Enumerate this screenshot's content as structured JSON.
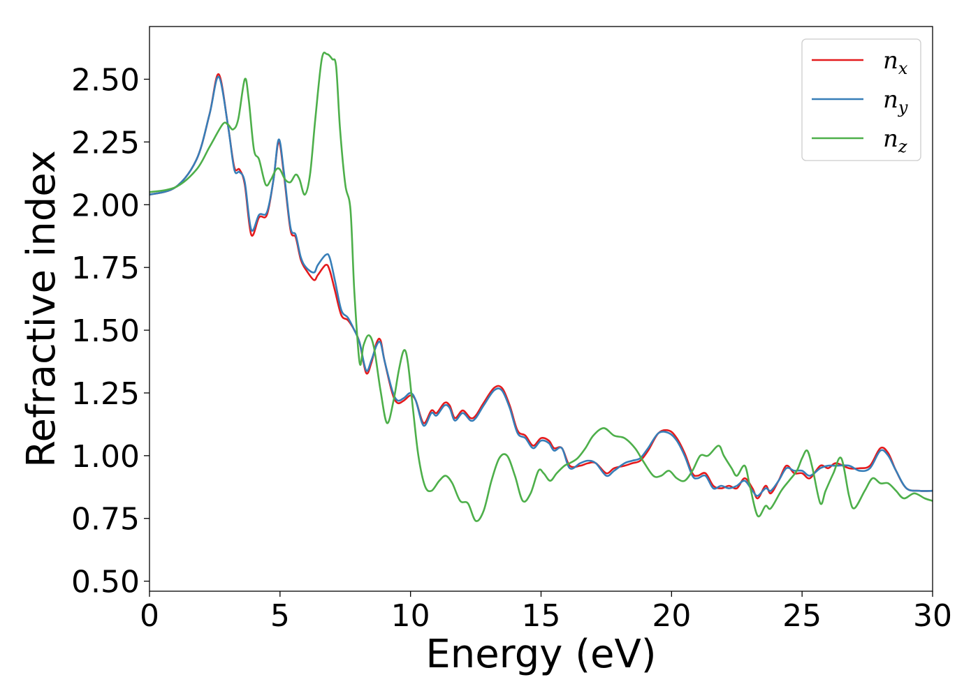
{
  "chart_data": {
    "type": "line",
    "title": "",
    "xlabel": "Energy (eV)",
    "ylabel": "Refractive index",
    "xlim": [
      0,
      30
    ],
    "ylim": [
      0.46,
      2.71
    ],
    "xticks": [
      0,
      5,
      10,
      15,
      20,
      25,
      30
    ],
    "xtick_labels": [
      "0",
      "5",
      "10",
      "15",
      "20",
      "25",
      "30"
    ],
    "yticks": [
      0.5,
      0.75,
      1.0,
      1.25,
      1.5,
      1.75,
      2.0,
      2.25,
      2.5
    ],
    "ytick_labels": [
      "0.50",
      "0.75",
      "1.00",
      "1.25",
      "1.50",
      "1.75",
      "2.00",
      "2.25",
      "2.50"
    ],
    "grid": false,
    "legend_position": "top-right",
    "series": [
      {
        "name": "n",
        "sub": "x",
        "color": "#e41a1c",
        "points": [
          [
            0,
            2.04
          ],
          [
            1,
            2.07
          ],
          [
            1.8,
            2.18
          ],
          [
            2.3,
            2.36
          ],
          [
            2.65,
            2.52
          ],
          [
            3.0,
            2.32
          ],
          [
            3.25,
            2.15
          ],
          [
            3.45,
            2.14
          ],
          [
            3.65,
            2.08
          ],
          [
            3.9,
            1.88
          ],
          [
            4.2,
            1.95
          ],
          [
            4.5,
            1.96
          ],
          [
            4.75,
            2.1
          ],
          [
            4.95,
            2.25
          ],
          [
            5.15,
            2.12
          ],
          [
            5.4,
            1.9
          ],
          [
            5.6,
            1.87
          ],
          [
            5.8,
            1.78
          ],
          [
            6.0,
            1.74
          ],
          [
            6.3,
            1.7
          ],
          [
            6.45,
            1.72
          ],
          [
            6.75,
            1.76
          ],
          [
            6.9,
            1.74
          ],
          [
            7.1,
            1.66
          ],
          [
            7.35,
            1.56
          ],
          [
            7.6,
            1.54
          ],
          [
            7.85,
            1.5
          ],
          [
            8.05,
            1.45
          ],
          [
            8.3,
            1.33
          ],
          [
            8.5,
            1.37
          ],
          [
            8.7,
            1.45
          ],
          [
            8.85,
            1.46
          ],
          [
            9.0,
            1.38
          ],
          [
            9.3,
            1.25
          ],
          [
            9.5,
            1.21
          ],
          [
            9.75,
            1.22
          ],
          [
            10.0,
            1.24
          ],
          [
            10.2,
            1.22
          ],
          [
            10.5,
            1.13
          ],
          [
            10.8,
            1.18
          ],
          [
            11.0,
            1.17
          ],
          [
            11.3,
            1.21
          ],
          [
            11.5,
            1.2
          ],
          [
            11.7,
            1.15
          ],
          [
            12.0,
            1.18
          ],
          [
            12.3,
            1.15
          ],
          [
            12.5,
            1.16
          ],
          [
            12.8,
            1.21
          ],
          [
            13.2,
            1.27
          ],
          [
            13.5,
            1.27
          ],
          [
            13.8,
            1.2
          ],
          [
            14.1,
            1.1
          ],
          [
            14.4,
            1.08
          ],
          [
            14.7,
            1.04
          ],
          [
            15.0,
            1.07
          ],
          [
            15.3,
            1.06
          ],
          [
            15.5,
            1.03
          ],
          [
            15.8,
            1.03
          ],
          [
            16.1,
            0.96
          ],
          [
            16.5,
            0.96
          ],
          [
            16.8,
            0.97
          ],
          [
            17.1,
            0.97
          ],
          [
            17.5,
            0.93
          ],
          [
            17.8,
            0.95
          ],
          [
            18.2,
            0.96
          ],
          [
            18.5,
            0.97
          ],
          [
            18.8,
            0.98
          ],
          [
            19.1,
            1.02
          ],
          [
            19.5,
            1.09
          ],
          [
            19.9,
            1.1
          ],
          [
            20.2,
            1.07
          ],
          [
            20.5,
            1.01
          ],
          [
            20.8,
            0.93
          ],
          [
            21.0,
            0.92
          ],
          [
            21.3,
            0.93
          ],
          [
            21.6,
            0.88
          ],
          [
            21.9,
            0.87
          ],
          [
            22.2,
            0.88
          ],
          [
            22.5,
            0.87
          ],
          [
            22.8,
            0.91
          ],
          [
            23.1,
            0.87
          ],
          [
            23.3,
            0.83
          ],
          [
            23.6,
            0.88
          ],
          [
            23.8,
            0.85
          ],
          [
            24.1,
            0.9
          ],
          [
            24.4,
            0.96
          ],
          [
            24.7,
            0.93
          ],
          [
            25.0,
            0.93
          ],
          [
            25.3,
            0.91
          ],
          [
            25.7,
            0.96
          ],
          [
            26.0,
            0.95
          ],
          [
            26.3,
            0.97
          ],
          [
            26.8,
            0.95
          ],
          [
            27.2,
            0.95
          ],
          [
            27.6,
            0.96
          ],
          [
            28.0,
            1.03
          ],
          [
            28.3,
            1.01
          ],
          [
            28.6,
            0.94
          ],
          [
            29.0,
            0.87
          ],
          [
            29.5,
            0.86
          ],
          [
            30.0,
            0.86
          ]
        ]
      },
      {
        "name": "n",
        "sub": "y",
        "color": "#377eb8",
        "points": [
          [
            0,
            2.04
          ],
          [
            1,
            2.07
          ],
          [
            1.8,
            2.18
          ],
          [
            2.3,
            2.36
          ],
          [
            2.65,
            2.51
          ],
          [
            3.0,
            2.32
          ],
          [
            3.25,
            2.14
          ],
          [
            3.45,
            2.13
          ],
          [
            3.65,
            2.09
          ],
          [
            3.9,
            1.9
          ],
          [
            4.2,
            1.96
          ],
          [
            4.5,
            1.97
          ],
          [
            4.75,
            2.1
          ],
          [
            4.95,
            2.26
          ],
          [
            5.15,
            2.13
          ],
          [
            5.4,
            1.91
          ],
          [
            5.6,
            1.88
          ],
          [
            5.8,
            1.79
          ],
          [
            6.0,
            1.75
          ],
          [
            6.3,
            1.73
          ],
          [
            6.45,
            1.76
          ],
          [
            6.75,
            1.8
          ],
          [
            6.9,
            1.79
          ],
          [
            7.1,
            1.7
          ],
          [
            7.35,
            1.58
          ],
          [
            7.6,
            1.55
          ],
          [
            7.85,
            1.5
          ],
          [
            8.05,
            1.45
          ],
          [
            8.3,
            1.34
          ],
          [
            8.5,
            1.38
          ],
          [
            8.7,
            1.44
          ],
          [
            8.85,
            1.45
          ],
          [
            9.0,
            1.38
          ],
          [
            9.3,
            1.26
          ],
          [
            9.5,
            1.22
          ],
          [
            9.75,
            1.23
          ],
          [
            10.0,
            1.25
          ],
          [
            10.2,
            1.22
          ],
          [
            10.5,
            1.12
          ],
          [
            10.8,
            1.17
          ],
          [
            11.0,
            1.16
          ],
          [
            11.3,
            1.2
          ],
          [
            11.5,
            1.19
          ],
          [
            11.7,
            1.14
          ],
          [
            12.0,
            1.17
          ],
          [
            12.3,
            1.14
          ],
          [
            12.5,
            1.15
          ],
          [
            12.8,
            1.2
          ],
          [
            13.2,
            1.26
          ],
          [
            13.5,
            1.26
          ],
          [
            13.8,
            1.19
          ],
          [
            14.1,
            1.09
          ],
          [
            14.4,
            1.07
          ],
          [
            14.7,
            1.03
          ],
          [
            15.0,
            1.06
          ],
          [
            15.3,
            1.05
          ],
          [
            15.5,
            1.02
          ],
          [
            15.8,
            1.03
          ],
          [
            16.1,
            0.95
          ],
          [
            16.5,
            0.97
          ],
          [
            16.8,
            0.98
          ],
          [
            17.1,
            0.97
          ],
          [
            17.5,
            0.92
          ],
          [
            17.8,
            0.94
          ],
          [
            18.2,
            0.97
          ],
          [
            18.5,
            0.98
          ],
          [
            18.8,
            0.99
          ],
          [
            19.1,
            1.03
          ],
          [
            19.5,
            1.09
          ],
          [
            19.9,
            1.09
          ],
          [
            20.2,
            1.06
          ],
          [
            20.5,
            1.0
          ],
          [
            20.8,
            0.92
          ],
          [
            21.0,
            0.91
          ],
          [
            21.3,
            0.92
          ],
          [
            21.6,
            0.87
          ],
          [
            21.9,
            0.88
          ],
          [
            22.2,
            0.87
          ],
          [
            22.5,
            0.88
          ],
          [
            22.8,
            0.9
          ],
          [
            23.1,
            0.86
          ],
          [
            23.3,
            0.84
          ],
          [
            23.6,
            0.87
          ],
          [
            23.8,
            0.86
          ],
          [
            24.1,
            0.9
          ],
          [
            24.4,
            0.95
          ],
          [
            24.7,
            0.94
          ],
          [
            25.0,
            0.94
          ],
          [
            25.3,
            0.92
          ],
          [
            25.7,
            0.95
          ],
          [
            26.0,
            0.96
          ],
          [
            26.3,
            0.96
          ],
          [
            26.8,
            0.96
          ],
          [
            27.2,
            0.94
          ],
          [
            27.6,
            0.95
          ],
          [
            28.0,
            1.02
          ],
          [
            28.3,
            1.0
          ],
          [
            28.6,
            0.94
          ],
          [
            29.0,
            0.87
          ],
          [
            29.5,
            0.86
          ],
          [
            30.0,
            0.86
          ]
        ]
      },
      {
        "name": "n",
        "sub": "z",
        "color": "#4daf4a",
        "points": [
          [
            0,
            2.05
          ],
          [
            1,
            2.07
          ],
          [
            1.8,
            2.14
          ],
          [
            2.3,
            2.23
          ],
          [
            2.8,
            2.32
          ],
          [
            3.0,
            2.32
          ],
          [
            3.2,
            2.3
          ],
          [
            3.4,
            2.34
          ],
          [
            3.65,
            2.5
          ],
          [
            3.8,
            2.42
          ],
          [
            4.0,
            2.22
          ],
          [
            4.2,
            2.18
          ],
          [
            4.45,
            2.08
          ],
          [
            4.65,
            2.1
          ],
          [
            4.85,
            2.14
          ],
          [
            5.0,
            2.14
          ],
          [
            5.2,
            2.1
          ],
          [
            5.4,
            2.09
          ],
          [
            5.6,
            2.12
          ],
          [
            5.75,
            2.1
          ],
          [
            5.95,
            2.04
          ],
          [
            6.15,
            2.12
          ],
          [
            6.35,
            2.34
          ],
          [
            6.6,
            2.58
          ],
          [
            6.8,
            2.6
          ],
          [
            7.0,
            2.58
          ],
          [
            7.15,
            2.55
          ],
          [
            7.3,
            2.3
          ],
          [
            7.5,
            2.08
          ],
          [
            7.7,
            1.98
          ],
          [
            7.85,
            1.65
          ],
          [
            8.05,
            1.37
          ],
          [
            8.2,
            1.44
          ],
          [
            8.4,
            1.48
          ],
          [
            8.6,
            1.43
          ],
          [
            8.85,
            1.26
          ],
          [
            9.1,
            1.13
          ],
          [
            9.35,
            1.22
          ],
          [
            9.55,
            1.34
          ],
          [
            9.75,
            1.42
          ],
          [
            9.9,
            1.37
          ],
          [
            10.1,
            1.18
          ],
          [
            10.3,
            1.0
          ],
          [
            10.55,
            0.88
          ],
          [
            10.8,
            0.86
          ],
          [
            11.1,
            0.9
          ],
          [
            11.35,
            0.92
          ],
          [
            11.6,
            0.89
          ],
          [
            11.9,
            0.82
          ],
          [
            12.2,
            0.81
          ],
          [
            12.5,
            0.74
          ],
          [
            12.8,
            0.78
          ],
          [
            13.1,
            0.9
          ],
          [
            13.4,
            0.99
          ],
          [
            13.7,
            1.0
          ],
          [
            14.0,
            0.92
          ],
          [
            14.3,
            0.82
          ],
          [
            14.6,
            0.85
          ],
          [
            14.9,
            0.94
          ],
          [
            15.1,
            0.93
          ],
          [
            15.35,
            0.9
          ],
          [
            15.6,
            0.93
          ],
          [
            15.9,
            0.96
          ],
          [
            16.1,
            0.97
          ],
          [
            16.4,
            0.99
          ],
          [
            16.7,
            1.03
          ],
          [
            17.0,
            1.08
          ],
          [
            17.4,
            1.11
          ],
          [
            17.8,
            1.08
          ],
          [
            18.2,
            1.07
          ],
          [
            18.6,
            1.03
          ],
          [
            18.9,
            0.98
          ],
          [
            19.3,
            0.92
          ],
          [
            19.6,
            0.92
          ],
          [
            19.9,
            0.94
          ],
          [
            20.2,
            0.91
          ],
          [
            20.5,
            0.9
          ],
          [
            20.8,
            0.94
          ],
          [
            21.1,
            1.0
          ],
          [
            21.4,
            1.0
          ],
          [
            21.8,
            1.04
          ],
          [
            22.0,
            1.0
          ],
          [
            22.3,
            0.95
          ],
          [
            22.5,
            0.92
          ],
          [
            22.8,
            0.96
          ],
          [
            23.0,
            0.88
          ],
          [
            23.3,
            0.76
          ],
          [
            23.6,
            0.8
          ],
          [
            23.8,
            0.79
          ],
          [
            24.2,
            0.86
          ],
          [
            24.5,
            0.9
          ],
          [
            24.8,
            0.94
          ],
          [
            25.0,
            0.99
          ],
          [
            25.2,
            1.02
          ],
          [
            25.4,
            0.95
          ],
          [
            25.7,
            0.81
          ],
          [
            25.9,
            0.86
          ],
          [
            26.2,
            0.93
          ],
          [
            26.5,
            0.99
          ],
          [
            26.8,
            0.84
          ],
          [
            27.0,
            0.79
          ],
          [
            27.4,
            0.86
          ],
          [
            27.7,
            0.91
          ],
          [
            28.0,
            0.89
          ],
          [
            28.3,
            0.89
          ],
          [
            28.6,
            0.86
          ],
          [
            28.9,
            0.83
          ],
          [
            29.3,
            0.85
          ],
          [
            29.7,
            0.83
          ],
          [
            30.0,
            0.82
          ]
        ]
      }
    ]
  }
}
